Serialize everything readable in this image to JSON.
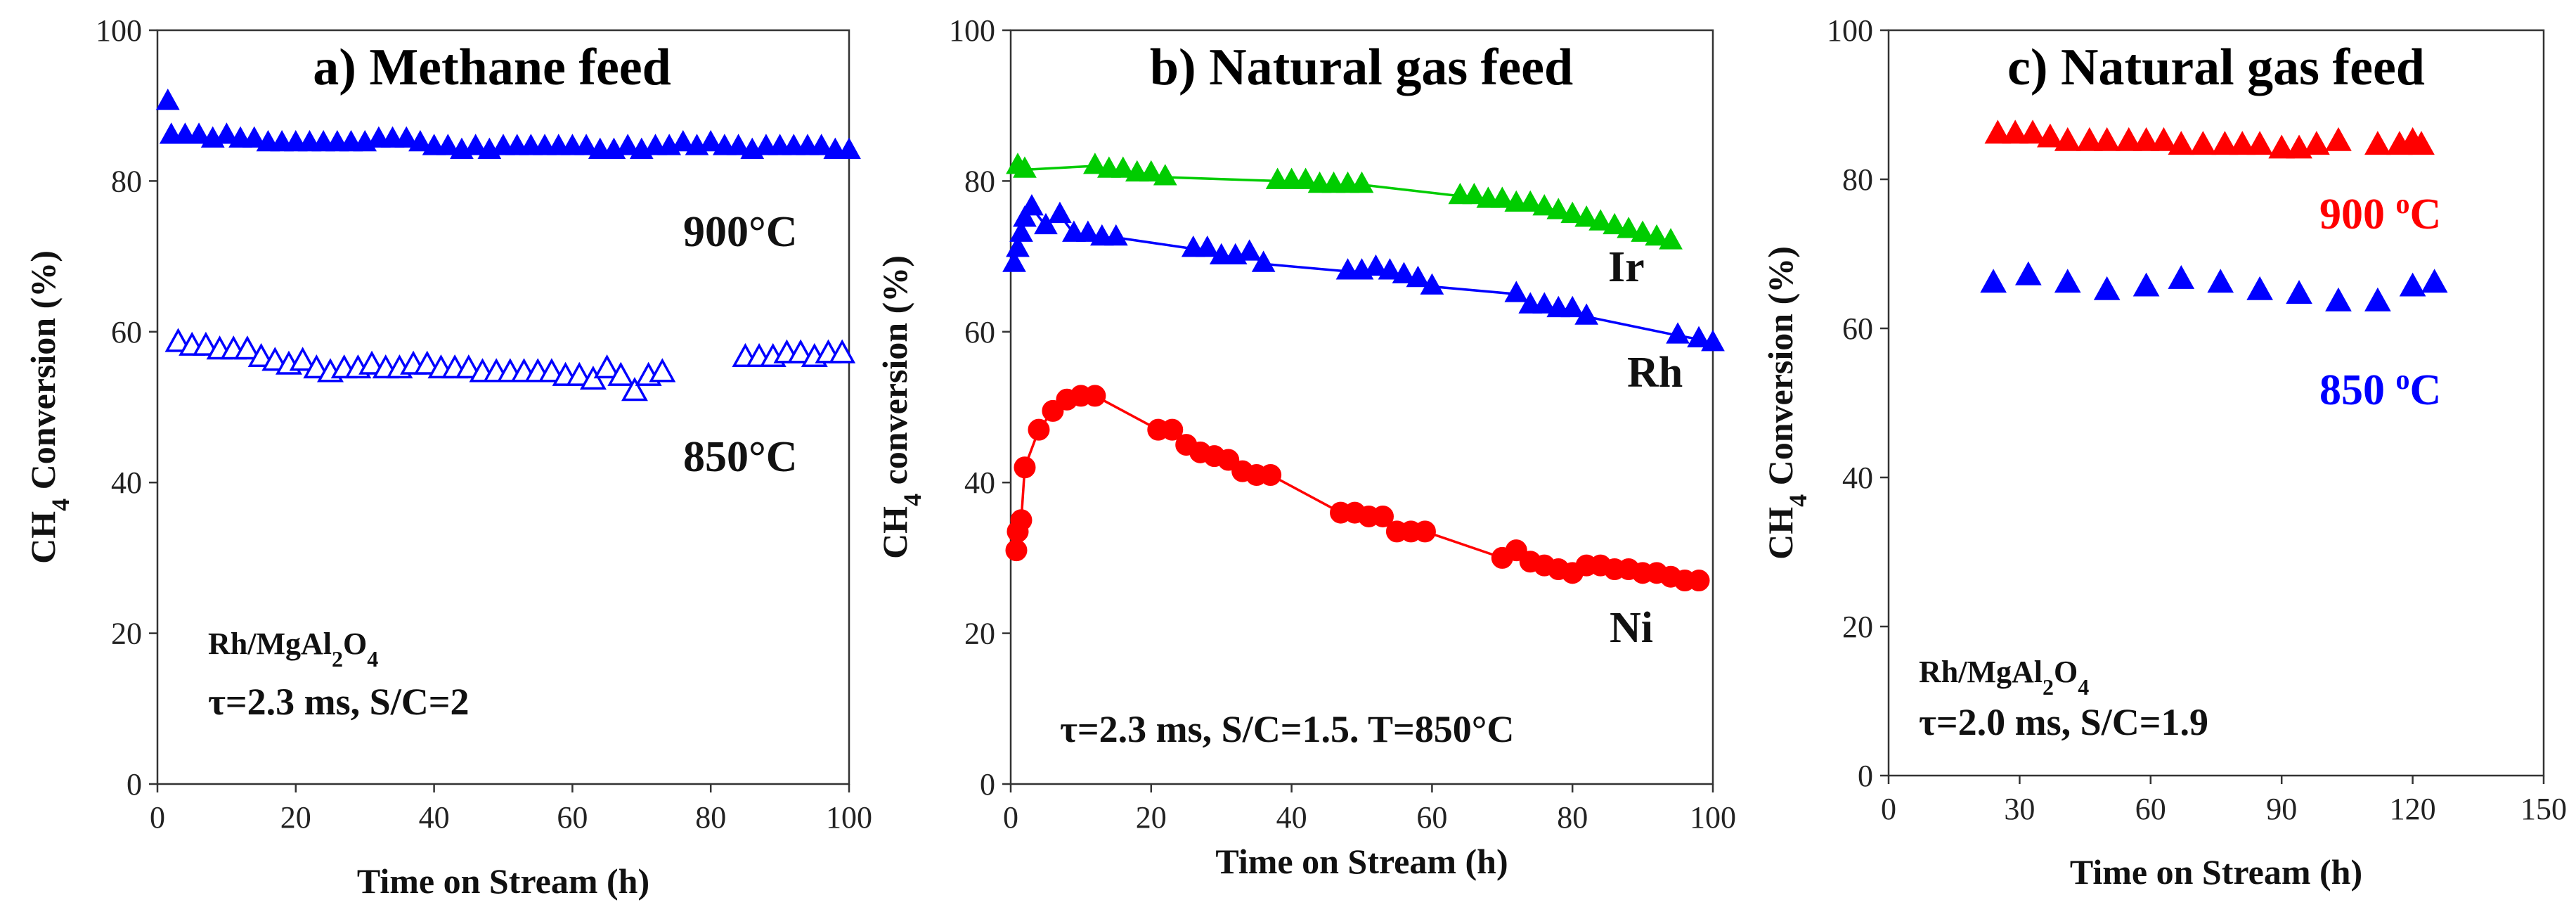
{
  "chart_data": [
    {
      "type": "scatter",
      "title": "a) Methane feed",
      "xlabel": "Time on Stream (h)",
      "ylabel_main": "CH",
      "ylabel_sub": "4",
      "ylabel_rest": " Conversion  (%)",
      "xlim": [
        0,
        100
      ],
      "ylim": [
        0,
        100
      ],
      "xticks": [
        0,
        20,
        40,
        60,
        80,
        100
      ],
      "yticks": [
        0,
        20,
        40,
        60,
        80,
        100
      ],
      "catalyst": {
        "main": "Rh/MgAl",
        "sub1": "2",
        "mid": "O",
        "sub2": "4"
      },
      "conditions": "τ=2.3 ms, S/C=2",
      "series": [
        {
          "name": "900°C",
          "label": "900°C",
          "color": "#0000ff",
          "marker": "triangle-filled",
          "x": [
            1.5,
            2,
            4,
            6,
            8,
            10,
            12,
            14,
            16,
            18,
            20,
            22,
            24,
            26,
            28,
            30,
            32,
            34,
            36,
            38,
            40,
            42,
            44,
            46,
            48,
            50,
            52,
            54,
            56,
            58,
            60,
            62,
            64,
            66,
            68,
            70,
            72,
            74,
            76,
            78,
            80,
            82,
            84,
            86,
            88,
            90,
            92,
            94,
            96,
            98,
            100
          ],
          "y": [
            90.5,
            86,
            86,
            86,
            85.5,
            86,
            85.5,
            85.5,
            85,
            85,
            85,
            85,
            85,
            85,
            85,
            85,
            85.5,
            85.5,
            85.5,
            85,
            84.5,
            84.5,
            84,
            84.5,
            84,
            84.5,
            84.5,
            84.5,
            84.5,
            84.5,
            84.5,
            84.5,
            84,
            84,
            84.5,
            84,
            84.5,
            84.5,
            85,
            84.5,
            85,
            84.5,
            84.5,
            84,
            84.5,
            84.5,
            84.5,
            84.5,
            84.5,
            84,
            84
          ]
        },
        {
          "name": "850°C",
          "label": "850°C",
          "color": "#0000ff",
          "marker": "triangle-open",
          "x": [
            3,
            5,
            7,
            9,
            11,
            13,
            15,
            17,
            19,
            21,
            23,
            25,
            27,
            29,
            31,
            33,
            35,
            37,
            39,
            41,
            43,
            45,
            47,
            49,
            51,
            53,
            55,
            57,
            59,
            61,
            63,
            65,
            67,
            69,
            71,
            73,
            85,
            87,
            89,
            91,
            93,
            95,
            97,
            99
          ],
          "y": [
            58.5,
            58,
            58,
            57.5,
            57.5,
            57.5,
            56.5,
            56,
            55.5,
            56,
            55,
            54.5,
            55,
            55,
            55.5,
            55,
            55,
            55.5,
            55.5,
            55,
            55,
            55,
            54.5,
            54.5,
            54.5,
            54.5,
            54.5,
            54.5,
            54,
            54,
            53.5,
            55,
            54,
            52,
            54,
            54.5,
            56.5,
            56.5,
            56.5,
            57,
            57,
            56.5,
            57,
            57
          ]
        }
      ]
    },
    {
      "type": "line",
      "title": "b) Natural gas feed",
      "xlabel": "Time on Stream (h)",
      "ylabel_main": "CH",
      "ylabel_sub": "4",
      "ylabel_rest": " conversion  (%)",
      "xlim": [
        0,
        100
      ],
      "ylim": [
        0,
        100
      ],
      "xticks": [
        0,
        20,
        40,
        60,
        80,
        100
      ],
      "yticks": [
        0,
        20,
        40,
        60,
        80,
        100
      ],
      "conditions": "τ=2.3 ms, S/C=1.5. T=850°C",
      "series": [
        {
          "name": "Ir",
          "label": "Ir",
          "color": "#00cc00",
          "marker": "triangle",
          "x": [
            1,
            2,
            12,
            14,
            16,
            18,
            20,
            22,
            38,
            40,
            42,
            44,
            46,
            48,
            50,
            64,
            66,
            68,
            70,
            72,
            74,
            76,
            78,
            80,
            82,
            84,
            86,
            88,
            90,
            92,
            94
          ],
          "y": [
            82,
            81.5,
            82,
            81.5,
            81.5,
            81,
            81,
            80.5,
            80,
            80,
            80,
            79.5,
            79.5,
            79.5,
            79.5,
            78,
            78,
            77.5,
            77.5,
            77,
            77,
            76.5,
            76,
            75.5,
            75,
            74.5,
            74,
            73.5,
            73,
            72.5,
            72
          ]
        },
        {
          "name": "Rh",
          "label": "Rh",
          "color": "#0000ff",
          "marker": "triangle",
          "x": [
            0.5,
            1,
            1.5,
            2,
            3,
            5,
            7,
            9,
            11,
            13,
            15,
            26,
            28,
            30,
            32,
            34,
            36,
            48,
            50,
            52,
            54,
            56,
            58,
            60,
            72,
            74,
            76,
            78,
            80,
            82,
            95,
            98,
            100
          ],
          "y": [
            69,
            71,
            73,
            75,
            76.5,
            74,
            75.5,
            73,
            73,
            72.5,
            72.5,
            71,
            71,
            70,
            70,
            70.5,
            69,
            68,
            68,
            68.5,
            68,
            67.5,
            67,
            66,
            65,
            63.5,
            63.5,
            63,
            63,
            62,
            59.5,
            59,
            58.5
          ]
        },
        {
          "name": "Ni",
          "label": "Ni",
          "color": "#ff0000",
          "marker": "circle",
          "x": [
            0.8,
            1,
            1.5,
            2,
            4,
            6,
            8,
            10,
            12,
            21,
            23,
            25,
            27,
            29,
            31,
            33,
            35,
            37,
            47,
            49,
            51,
            53,
            55,
            57,
            59,
            70,
            72,
            74,
            76,
            78,
            80,
            82,
            84,
            86,
            88,
            90,
            92,
            94,
            96,
            98
          ],
          "y": [
            31,
            33.5,
            35,
            42,
            47,
            49.5,
            51,
            51.5,
            51.5,
            47,
            47,
            45,
            44,
            43.5,
            43,
            41.5,
            41,
            41,
            36,
            36,
            35.5,
            35.5,
            33.5,
            33.5,
            33.5,
            30,
            31,
            29.5,
            29,
            28.5,
            28,
            29,
            29,
            28.5,
            28.5,
            28,
            28,
            27.5,
            27,
            27
          ]
        }
      ]
    },
    {
      "type": "scatter",
      "title": "c) Natural gas feed",
      "xlabel": "Time on Stream (h)",
      "ylabel_main": "CH",
      "ylabel_sub": "4",
      "ylabel_rest": " Conversion  (%)",
      "xlim": [
        0,
        150
      ],
      "ylim": [
        0,
        100
      ],
      "xticks": [
        0,
        30,
        60,
        90,
        120,
        150
      ],
      "yticks": [
        0,
        20,
        40,
        60,
        80,
        100
      ],
      "catalyst": {
        "main": "Rh/MgAl",
        "sub1": "2",
        "mid": "O",
        "sub2": "4"
      },
      "conditions": "τ=2.0 ms, S/C=1.9",
      "series": [
        {
          "name": "900 °C",
          "label_main": "900 ",
          "label_sup": "o",
          "label_end": "C",
          "color": "#ff0000",
          "marker": "triangle-filled",
          "x": [
            25,
            29,
            33,
            37,
            41,
            46,
            50,
            55,
            59,
            63,
            67,
            72,
            77,
            81,
            85,
            90,
            94,
            98,
            103,
            112,
            117,
            120,
            122
          ],
          "y": [
            86,
            86,
            86,
            85.5,
            85,
            85,
            85,
            85,
            85,
            85,
            84.5,
            84.5,
            84.5,
            84.5,
            84.5,
            84,
            84,
            84.5,
            85,
            84.5,
            84.5,
            85,
            84.5
          ]
        },
        {
          "name": "850 °C",
          "label_main": "850 ",
          "label_sup": "o",
          "label_end": "C",
          "color": "#0000ff",
          "marker": "triangle-filled",
          "x": [
            24,
            32,
            41,
            50,
            59,
            67,
            76,
            85,
            94,
            103,
            112,
            120,
            125
          ],
          "y": [
            66,
            67,
            66,
            65,
            65.5,
            66.5,
            66,
            65,
            64.5,
            63.5,
            63.5,
            65.5,
            66
          ]
        }
      ]
    }
  ]
}
